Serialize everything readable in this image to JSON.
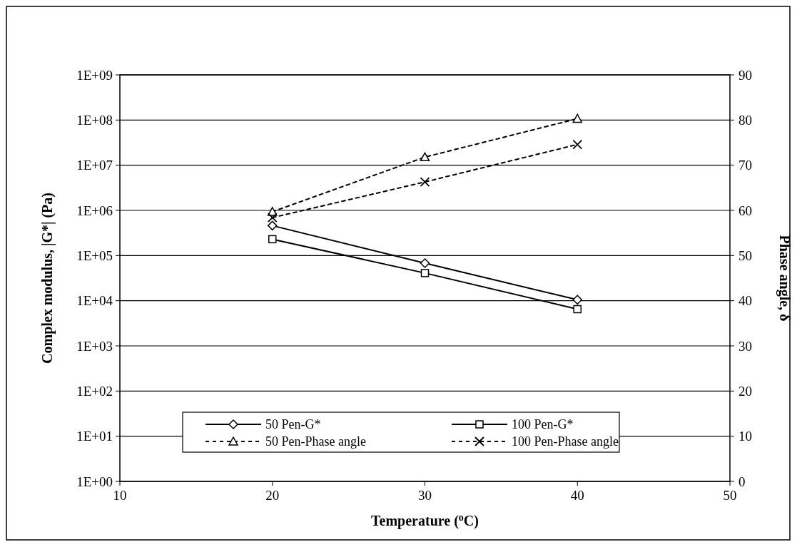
{
  "chart_data": {
    "type": "line",
    "xlabel": "Temperature ($^{o}$C)",
    "ylabel": "Complex modulus, |G*| (Pa)",
    "y2label": "Phase angle, δ",
    "x": [
      20,
      30,
      40
    ],
    "xlim": [
      10,
      50
    ],
    "xticks": [
      10,
      20,
      30,
      40,
      50
    ],
    "log": "y",
    "ylim": [
      1,
      1000000000
    ],
    "yticks": [
      {
        "value": 1,
        "label": "1E+00"
      },
      {
        "value": 10,
        "label": "1E+01"
      },
      {
        "value": 100,
        "label": "1E+02"
      },
      {
        "value": 1000,
        "label": "1E+03"
      },
      {
        "value": 10000,
        "label": "1E+04"
      },
      {
        "value": 100000,
        "label": "1E+05"
      },
      {
        "value": 1000000,
        "label": "1E+06"
      },
      {
        "value": 10000000,
        "label": "1E+07"
      },
      {
        "value": 100000000,
        "label": "1E+08"
      },
      {
        "value": 1000000000,
        "label": "1E+09"
      }
    ],
    "y2lim": [
      0,
      90
    ],
    "y2ticks": [
      0,
      10,
      20,
      30,
      40,
      50,
      60,
      70,
      80,
      90
    ],
    "grid": "y",
    "legend": "bottom",
    "series": [
      {
        "name": "50 Pen-G*",
        "color": "#000000",
        "marker": "diamond",
        "line_style": "solid",
        "values": [
          460000,
          68000,
          10500
        ]
      },
      {
        "name": "100 Pen-G*",
        "color": "#000000",
        "marker": "square",
        "line_style": "solid",
        "values": [
          230000,
          41000,
          6500
        ]
      },
      {
        "name": "50 Pen-Phase angle",
        "color": "#000000",
        "marker": "triangle",
        "line_style": "dashed",
        "axis": "y2",
        "values": [
          59.7,
          71.8,
          80.3
        ]
      },
      {
        "name": "100 Pen-Phase angle",
        "color": "#000000",
        "marker": "cross",
        "line_style": "dashed",
        "axis": "y2",
        "values": [
          58.4,
          66.3,
          74.6
        ]
      }
    ]
  }
}
